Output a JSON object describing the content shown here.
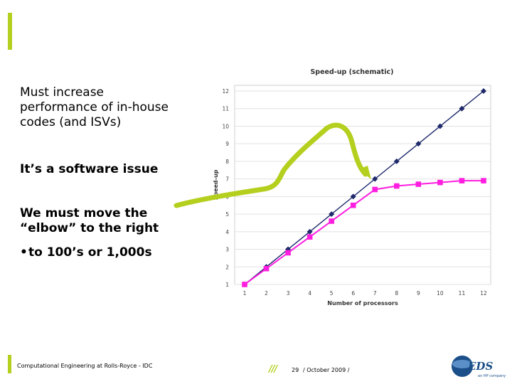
{
  "slide": {
    "intro_line1": "Must increase",
    "intro_line2": "performance of in-house",
    "intro_line3": "codes (and ISVs)",
    "issue": "It’s a software issue",
    "elbow_line1": "We must move the",
    "elbow_line2": "“elbow” to the right",
    "bullet_marker": "•",
    "bullet": "to 100’s or 1,000s"
  },
  "footer": {
    "company": "Computational Engineering at Rolls-Royce - IDC",
    "page_number": "29",
    "date": "/ October 2009 /",
    "slashes": "///"
  },
  "logo": {
    "name": "EDS",
    "tagline": "an HP company"
  },
  "colors": {
    "accent": "#b5cf1e",
    "ideal_series": "#1f2a6b",
    "actual_series": "#ff1ee0",
    "logo_blue": "#1b4f8a"
  },
  "chart_data": {
    "type": "line",
    "title": "Speed-up (schematic)",
    "xlabel": "Number of processors",
    "ylabel": "Speed-up",
    "x": [
      1,
      2,
      3,
      4,
      5,
      6,
      7,
      8,
      9,
      10,
      11,
      12
    ],
    "xlim": [
      1,
      12
    ],
    "ylim": [
      1,
      12
    ],
    "yticks": [
      1,
      2,
      3,
      4,
      5,
      6,
      7,
      8,
      9,
      10,
      11,
      12
    ],
    "grid": true,
    "legend": "none",
    "series": [
      {
        "marker": "diamond",
        "color": "#1f2a6b",
        "values": [
          1,
          2,
          3,
          4,
          5,
          6,
          7,
          8,
          9,
          10,
          11,
          12
        ]
      },
      {
        "marker": "square",
        "color": "#ff1ee0",
        "values": [
          1,
          1.9,
          2.8,
          3.7,
          4.6,
          5.5,
          6.4,
          6.6,
          6.7,
          6.8,
          6.9,
          6.9
        ]
      }
    ]
  }
}
